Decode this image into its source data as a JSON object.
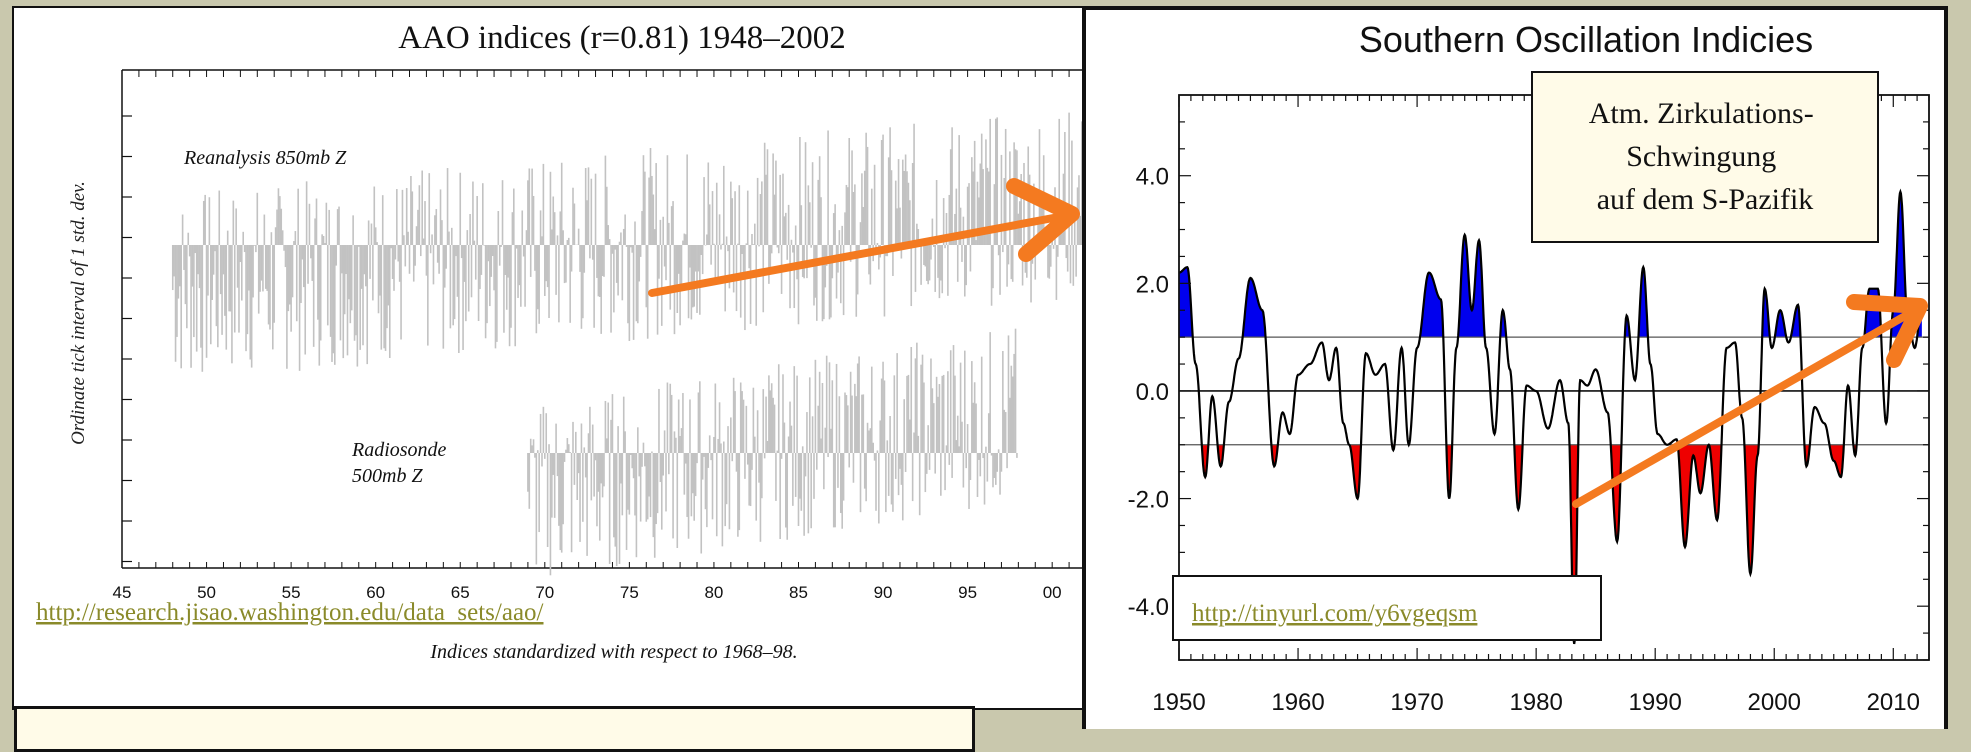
{
  "chart_data": [
    {
      "type": "bar",
      "title": "AAO indices (r=0.81) 1948–2002",
      "ylabel": "Ordinate tick interval of 1 std. dev.",
      "xlabel": "Indices standardized with respect to 1968–98.",
      "x_tick_labels": [
        "45",
        "50",
        "55",
        "60",
        "65",
        "70",
        "75",
        "80",
        "85",
        "90",
        "95",
        "00"
      ],
      "x_range": [
        1945,
        2002
      ],
      "series": [
        {
          "name": "Reanalysis 850mb Z",
          "period": [
            1948,
            2002
          ]
        },
        {
          "name": "Radiosonde 500mb Z",
          "period": [
            1969,
            1998
          ]
        }
      ],
      "source_url": "http://research.jisao.washington.edu/data_sets/aao/"
    },
    {
      "type": "area",
      "title": "Southern Oscillation Indicies",
      "xlim": [
        1950,
        2013
      ],
      "ylim": [
        -5,
        5.5
      ],
      "x_tick_labels": [
        "1950",
        "1960",
        "1970",
        "1980",
        "1990",
        "2000",
        "2010"
      ],
      "y_tick_labels": [
        "4.0",
        "2.0",
        "0.0",
        "-2.0",
        "-4.0"
      ],
      "thresholds": [
        1,
        -1
      ],
      "colors": {
        "positive_fill": "#0000ee",
        "negative_fill": "#ee0000",
        "line": "#000000"
      },
      "x": [
        1950,
        1950.7,
        1951.4,
        1952.2,
        1952.8,
        1953.5,
        1954.2,
        1955,
        1956,
        1957,
        1958,
        1958.7,
        1959.3,
        1960,
        1961,
        1962,
        1962.6,
        1963.2,
        1963.8,
        1964.3,
        1965,
        1965.7,
        1966.5,
        1967.3,
        1968,
        1968.7,
        1969.3,
        1970,
        1971,
        1972,
        1972.7,
        1973.3,
        1974,
        1974.6,
        1975.2,
        1975.8,
        1976.5,
        1977.2,
        1977.8,
        1978.5,
        1979.2,
        1980,
        1981,
        1982,
        1982.7,
        1983.2,
        1983.7,
        1984.3,
        1985,
        1986,
        1986.8,
        1987.6,
        1988.3,
        1989,
        1989.6,
        1990.2,
        1991,
        1991.8,
        1992.5,
        1993.2,
        1993.8,
        1994.5,
        1995.2,
        1996,
        1996.7,
        1997.3,
        1998,
        1998.6,
        1999.2,
        1999.8,
        2000.5,
        2001.2,
        2002,
        2002.7,
        2003.4,
        2004.2,
        2005,
        2005.6,
        2006.2,
        2006.8,
        2007.4,
        2008,
        2008.7,
        2009.4,
        2010,
        2010.6,
        2011.2,
        2011.8,
        2012.4
      ],
      "values": [
        2.2,
        2.3,
        0.5,
        -1.6,
        -0.1,
        -1.4,
        -0.2,
        0.6,
        2.1,
        1.5,
        -1.4,
        -0.4,
        -0.8,
        0.3,
        0.5,
        0.9,
        0.2,
        0.8,
        -0.6,
        -1.0,
        -2.0,
        0.7,
        0.3,
        0.5,
        -1.1,
        0.8,
        -1.0,
        0.8,
        2.2,
        1.7,
        -2.0,
        0.8,
        2.9,
        1.5,
        2.8,
        0.8,
        -0.8,
        1.5,
        0.4,
        -2.2,
        0.1,
        0.0,
        -0.7,
        0.2,
        -0.6,
        -4.7,
        0.2,
        0.1,
        0.4,
        -0.4,
        -2.8,
        1.4,
        0.2,
        2.3,
        0.5,
        -0.8,
        -1.0,
        -0.9,
        -2.9,
        -1.2,
        -1.9,
        -1.0,
        -2.4,
        0.8,
        0.9,
        -0.5,
        -3.4,
        -1.2,
        1.9,
        0.8,
        1.5,
        0.9,
        1.6,
        -1.4,
        -0.3,
        -0.6,
        -1.3,
        -1.6,
        0.1,
        -1.2,
        0.8,
        1.9,
        1.9,
        -0.6,
        1.5,
        3.7,
        1.4,
        0.8,
        1.6
      ],
      "source_url": "http://tinyurl.com/y6vgeqsm"
    }
  ],
  "annotation": {
    "lines": [
      "Atm. Zirkulations-",
      "Schwingung",
      "auf dem S-Pazifik"
    ]
  }
}
